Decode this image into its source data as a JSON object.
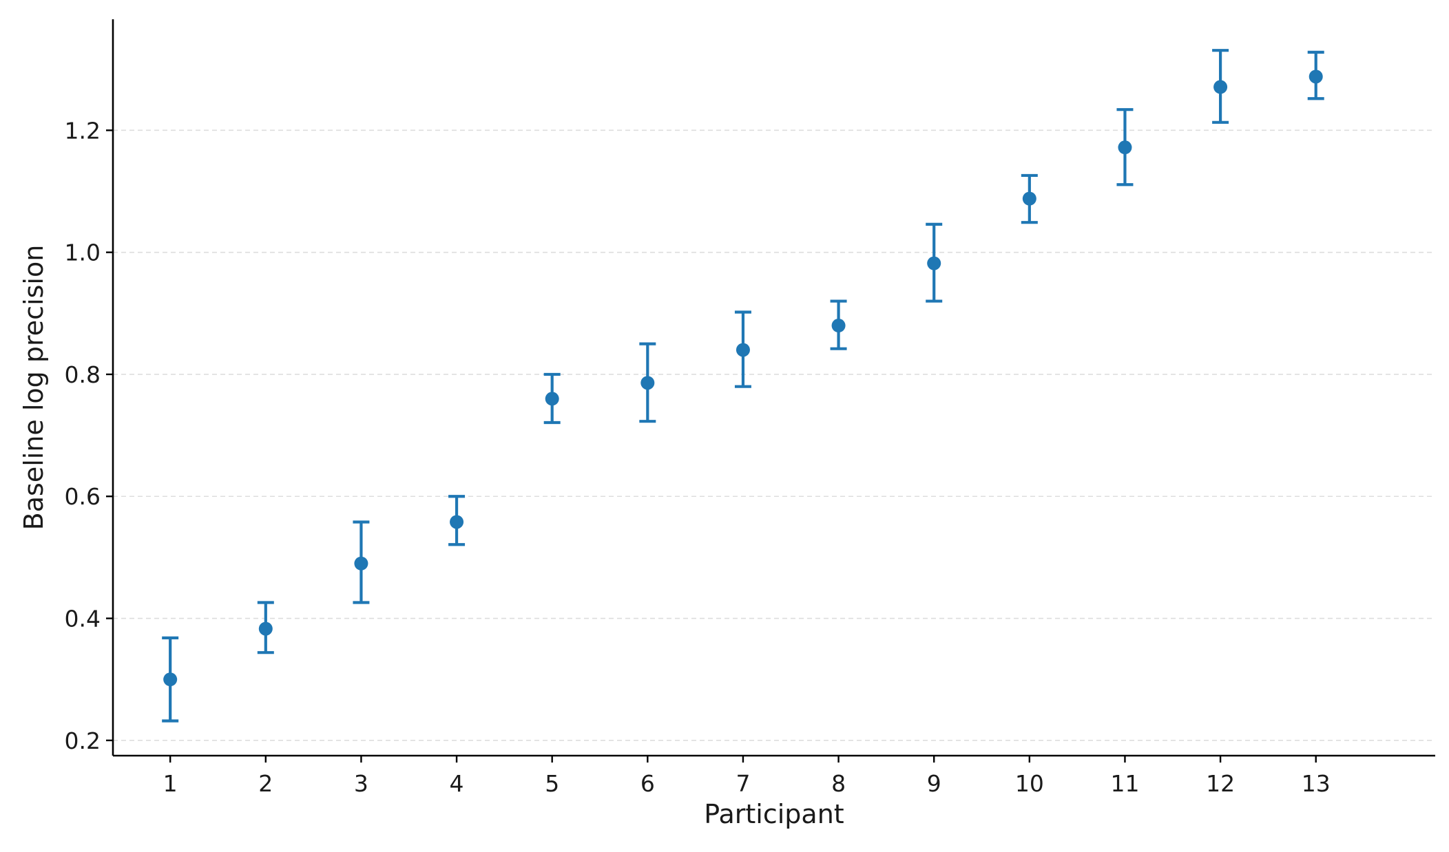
{
  "chart_data": {
    "type": "scatter",
    "title": "",
    "xlabel": "Participant",
    "ylabel": "Baseline log precision",
    "x": [
      1,
      2,
      3,
      4,
      5,
      6,
      7,
      8,
      9,
      10,
      11,
      12,
      13
    ],
    "x_tick_labels": [
      "1",
      "2",
      "3",
      "4",
      "5",
      "6",
      "7",
      "8",
      "9",
      "10",
      "11",
      "12",
      "13"
    ],
    "xlim": [
      0.4,
      14.25
    ],
    "ylim": [
      0.175,
      1.382
    ],
    "y_ticks": [
      0.2,
      0.4,
      0.6,
      0.8,
      1.0,
      1.2
    ],
    "y_tick_labels": [
      "0.2",
      "0.4",
      "0.6",
      "0.8",
      "1.0",
      "1.2"
    ],
    "grid": "horizontal dashed",
    "series": [
      {
        "values": [
          0.3,
          0.383,
          0.49,
          0.558,
          0.76,
          0.786,
          0.84,
          0.88,
          0.982,
          1.088,
          1.172,
          1.271,
          1.288
        ],
        "lower": [
          0.232,
          0.344,
          0.426,
          0.521,
          0.721,
          0.723,
          0.78,
          0.842,
          0.92,
          1.049,
          1.111,
          1.213,
          1.252
        ],
        "upper": [
          0.368,
          0.426,
          0.558,
          0.6,
          0.8,
          0.85,
          0.902,
          0.92,
          1.046,
          1.126,
          1.234,
          1.331,
          1.328
        ]
      }
    ],
    "colors": {
      "series": "#1f77b4",
      "axis": "#000000",
      "grid": "#dddddd"
    }
  }
}
